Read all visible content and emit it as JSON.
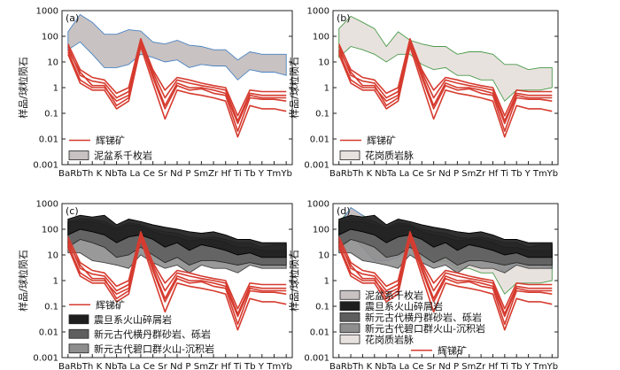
{
  "figure": {
    "y_axis_label": "样品/球粒陨石",
    "x_elements": [
      "Ba",
      "Rb",
      "Th",
      "K",
      "Nb",
      "Ta",
      "La",
      "Ce",
      "Sr",
      "Nd",
      "P",
      "Sm",
      "Zr",
      "Hf",
      "Ti",
      "Tb",
      "Y",
      "Tm",
      "Yb"
    ],
    "x_tick_text": "BaRbTh K NbTa La Ce Sr Nd P SmZr Hf Ti Tb Y TmYb",
    "y_ticks": [
      "0.001",
      "0.01",
      "0.1",
      "1",
      "10",
      "100",
      "1000"
    ]
  },
  "legend_labels": {
    "stibnite": "辉锑矿",
    "nipen_phyllite": "泥盆系千枚岩",
    "granite_vein": "花岗质岩脉",
    "sinian_volcaniclastic": "震旦系火山碎屑岩",
    "henglan_sandstone": "新元古代横丹群砂岩、砾岩",
    "bikou_volcanic": "新元古代碧口群火山-沉积岩"
  },
  "colors": {
    "stibnite": "#d63b2f",
    "phyllite_fill": "#c8c2c2",
    "phyllite_edge": "#4a83c4",
    "granite_fill": "#e8e2de",
    "granite_edge": "#4a9a4a",
    "sinian_fill": "#1e1e1e",
    "henglan_fill": "#5e5e5e",
    "bikou_fill": "#8e8e8e"
  },
  "chart_data": [
    {
      "type": "line",
      "panel": "(a)",
      "yscale": "log",
      "ylim": [
        0.001,
        1000
      ],
      "categories": [
        "Ba",
        "Rb",
        "Th",
        "K",
        "Nb",
        "Ta",
        "La",
        "Ce",
        "Sr",
        "Nd",
        "P",
        "Sm",
        "Zr",
        "Hf",
        "Ti",
        "Tb",
        "Y",
        "Tm",
        "Yb"
      ],
      "ylabel": "样品/球粒陨石",
      "bands": [
        {
          "name": "泥盆系千枚岩",
          "upper": [
            150,
            700,
            350,
            120,
            120,
            180,
            160,
            60,
            50,
            70,
            45,
            40,
            30,
            30,
            12,
            25,
            20,
            20,
            20
          ],
          "lower": [
            30,
            60,
            20,
            6,
            6,
            8,
            20,
            15,
            10,
            12,
            6,
            8,
            7,
            7,
            2,
            5,
            4,
            4,
            3
          ]
        }
      ],
      "series": [
        {
          "name": "辉锑矿",
          "values": [
            25,
            2,
            1,
            1,
            0.3,
            0.5,
            60,
            3,
            0.2,
            1.5,
            1,
            1,
            0.8,
            0.6,
            0.04,
            0.5,
            0.4,
            0.4,
            0.4
          ]
        },
        {
          "name": "辉锑矿",
          "values": [
            40,
            3,
            1.8,
            1.5,
            0.4,
            0.7,
            70,
            4,
            0.4,
            2,
            1.5,
            1.2,
            1,
            0.8,
            0.05,
            0.6,
            0.5,
            0.5,
            0.5
          ]
        },
        {
          "name": "辉锑矿",
          "values": [
            30,
            4,
            1.2,
            1.2,
            0.2,
            0.4,
            55,
            2.5,
            0.15,
            1.2,
            0.8,
            0.9,
            0.6,
            0.5,
            0.02,
            0.4,
            0.35,
            0.35,
            0.3
          ]
        },
        {
          "name": "辉锑矿",
          "values": [
            50,
            5,
            2.5,
            2,
            0.6,
            1,
            80,
            5,
            0.8,
            2.5,
            2,
            1.5,
            1.2,
            1,
            0.08,
            0.8,
            0.7,
            0.7,
            0.7
          ]
        },
        {
          "name": "辉锑矿",
          "values": [
            20,
            1.5,
            0.8,
            0.8,
            0.15,
            0.3,
            40,
            1.5,
            0.06,
            0.8,
            0.6,
            0.5,
            0.4,
            0.3,
            0.012,
            0.2,
            0.15,
            0.15,
            0.12
          ]
        }
      ],
      "legend": [
        "辉锑矿",
        "泥盆系千枚岩"
      ]
    },
    {
      "type": "line",
      "panel": "(b)",
      "yscale": "log",
      "ylim": [
        0.001,
        1000
      ],
      "categories": [
        "Ba",
        "Rb",
        "Th",
        "K",
        "Nb",
        "Ta",
        "La",
        "Ce",
        "Sr",
        "Nd",
        "P",
        "Sm",
        "Zr",
        "Hf",
        "Ti",
        "Tb",
        "Y",
        "Tm",
        "Yb"
      ],
      "ylabel": "样品/球粒陨石",
      "bands": [
        {
          "name": "花岗质岩脉",
          "upper": [
            200,
            600,
            350,
            200,
            40,
            150,
            70,
            50,
            40,
            40,
            20,
            25,
            25,
            20,
            8,
            8,
            5,
            6,
            6
          ],
          "lower": [
            15,
            40,
            30,
            20,
            10,
            20,
            20,
            8,
            5,
            6,
            3,
            3,
            2,
            2,
            0.3,
            0.8,
            0.8,
            0.8,
            1
          ]
        }
      ],
      "series": [
        {
          "name": "辉锑矿",
          "values": [
            25,
            2,
            1,
            1,
            0.3,
            0.5,
            60,
            3,
            0.2,
            1.5,
            1,
            1,
            0.8,
            0.6,
            0.04,
            0.5,
            0.4,
            0.4,
            0.4
          ]
        },
        {
          "name": "辉锑矿",
          "values": [
            40,
            3,
            1.8,
            1.5,
            0.4,
            0.7,
            70,
            4,
            0.4,
            2,
            1.5,
            1.2,
            1,
            0.8,
            0.05,
            0.6,
            0.5,
            0.5,
            0.5
          ]
        },
        {
          "name": "辉锑矿",
          "values": [
            30,
            4,
            1.2,
            1.2,
            0.2,
            0.4,
            55,
            2.5,
            0.15,
            1.2,
            0.8,
            0.9,
            0.6,
            0.5,
            0.02,
            0.4,
            0.35,
            0.35,
            0.3
          ]
        },
        {
          "name": "辉锑矿",
          "values": [
            50,
            5,
            2.5,
            2,
            0.6,
            1,
            80,
            5,
            0.8,
            2.5,
            2,
            1.5,
            1.2,
            1,
            0.08,
            0.8,
            0.7,
            0.7,
            0.7
          ]
        },
        {
          "name": "辉锑矿",
          "values": [
            20,
            1.5,
            0.8,
            0.8,
            0.15,
            0.3,
            40,
            1.5,
            0.06,
            0.8,
            0.6,
            0.5,
            0.4,
            0.3,
            0.012,
            0.2,
            0.15,
            0.15,
            0.12
          ]
        }
      ],
      "legend": [
        "辉锑矿",
        "花岗质岩脉"
      ]
    },
    {
      "type": "line",
      "panel": "(c)",
      "yscale": "log",
      "ylim": [
        0.001,
        1000
      ],
      "categories": [
        "Ba",
        "Rb",
        "Th",
        "K",
        "Nb",
        "Ta",
        "La",
        "Ce",
        "Sr",
        "Nd",
        "P",
        "Sm",
        "Zr",
        "Hf",
        "Ti",
        "Tb",
        "Y",
        "Tm",
        "Yb"
      ],
      "ylabel": "样品/球粒陨石",
      "bands": [
        {
          "name": "新元古代碧口群火山-沉积岩",
          "upper": [
            200,
            250,
            250,
            200,
            120,
            180,
            150,
            100,
            80,
            70,
            50,
            45,
            50,
            40,
            30,
            30,
            20,
            25,
            25
          ],
          "lower": [
            12,
            12,
            6,
            5,
            4,
            3,
            10,
            5,
            3,
            4,
            2,
            4,
            3,
            3,
            2,
            4,
            3,
            3,
            3
          ]
        },
        {
          "name": "新元古代横丹群砂岩、砾岩",
          "upper": [
            180,
            200,
            200,
            150,
            100,
            150,
            130,
            80,
            60,
            50,
            35,
            40,
            40,
            30,
            20,
            20,
            15,
            15,
            15
          ],
          "lower": [
            20,
            40,
            30,
            20,
            8,
            10,
            20,
            10,
            5,
            8,
            4,
            6,
            6,
            5,
            4,
            5,
            4,
            4,
            4
          ]
        },
        {
          "name": "震旦系火山碎屑岩",
          "upper": [
            250,
            350,
            300,
            350,
            150,
            250,
            200,
            150,
            120,
            100,
            80,
            70,
            80,
            60,
            40,
            40,
            30,
            30,
            30
          ],
          "lower": [
            60,
            100,
            80,
            60,
            30,
            50,
            60,
            40,
            20,
            30,
            15,
            25,
            20,
            15,
            10,
            12,
            8,
            8,
            8
          ]
        }
      ],
      "series": [
        {
          "name": "辉锑矿",
          "values": [
            25,
            2,
            1,
            1,
            0.3,
            0.5,
            60,
            3,
            0.2,
            1.5,
            1,
            1,
            0.8,
            0.6,
            0.04,
            0.5,
            0.4,
            0.4,
            0.4
          ]
        },
        {
          "name": "辉锑矿",
          "values": [
            40,
            3,
            1.8,
            1.5,
            0.4,
            0.7,
            70,
            4,
            0.4,
            2,
            1.5,
            1.2,
            1,
            0.8,
            0.05,
            0.6,
            0.5,
            0.5,
            0.5
          ]
        },
        {
          "name": "辉锑矿",
          "values": [
            30,
            4,
            1.2,
            1.2,
            0.2,
            0.4,
            55,
            2.5,
            0.15,
            1.2,
            0.8,
            0.9,
            0.6,
            0.5,
            0.02,
            0.4,
            0.35,
            0.35,
            0.3
          ]
        },
        {
          "name": "辉锑矿",
          "values": [
            50,
            5,
            2.5,
            2,
            0.6,
            1,
            80,
            5,
            0.8,
            2.5,
            2,
            1.5,
            1.2,
            1,
            0.08,
            0.8,
            0.7,
            0.7,
            0.7
          ]
        },
        {
          "name": "辉锑矿",
          "values": [
            20,
            1.5,
            0.8,
            0.8,
            0.15,
            0.3,
            40,
            1.5,
            0.06,
            0.8,
            0.6,
            0.5,
            0.4,
            0.3,
            0.012,
            0.2,
            0.15,
            0.15,
            0.12
          ]
        }
      ],
      "legend": [
        "辉锑矿",
        "震旦系火山碎屑岩",
        "新元古代横丹群砂岩、砾岩",
        "新元古代碧口群火山-沉积岩"
      ]
    },
    {
      "type": "line",
      "panel": "(d)",
      "yscale": "log",
      "ylim": [
        0.001,
        1000
      ],
      "categories": [
        "Ba",
        "Rb",
        "Th",
        "K",
        "Nb",
        "Ta",
        "La",
        "Ce",
        "Sr",
        "Nd",
        "P",
        "Sm",
        "Zr",
        "Hf",
        "Ti",
        "Tb",
        "Y",
        "Tm",
        "Yb"
      ],
      "ylabel": "样品/球粒陨石",
      "bands": [
        {
          "name": "花岗质岩脉",
          "upper": [
            200,
            600,
            350,
            200,
            40,
            150,
            70,
            50,
            40,
            40,
            20,
            25,
            25,
            20,
            8,
            8,
            5,
            6,
            6
          ],
          "lower": [
            15,
            40,
            30,
            20,
            10,
            20,
            20,
            8,
            5,
            6,
            3,
            3,
            2,
            2,
            0.3,
            0.8,
            0.8,
            0.8,
            1
          ]
        },
        {
          "name": "泥盆系千枚岩",
          "upper": [
            150,
            700,
            350,
            120,
            120,
            180,
            160,
            60,
            50,
            70,
            45,
            40,
            30,
            30,
            12,
            25,
            20,
            20,
            20
          ],
          "lower": [
            30,
            60,
            20,
            6,
            6,
            8,
            20,
            15,
            10,
            12,
            6,
            8,
            7,
            7,
            2,
            5,
            4,
            4,
            3
          ]
        },
        {
          "name": "新元古代碧口群火山-沉积岩",
          "upper": [
            200,
            250,
            250,
            200,
            120,
            180,
            150,
            100,
            80,
            70,
            50,
            45,
            50,
            40,
            30,
            30,
            20,
            25,
            25
          ],
          "lower": [
            12,
            12,
            6,
            5,
            4,
            3,
            10,
            5,
            3,
            4,
            2,
            4,
            3,
            3,
            2,
            4,
            3,
            3,
            3
          ]
        },
        {
          "name": "新元古代横丹群砂岩、砾岩",
          "upper": [
            180,
            200,
            200,
            150,
            100,
            150,
            130,
            80,
            60,
            50,
            35,
            40,
            40,
            30,
            20,
            20,
            15,
            15,
            15
          ],
          "lower": [
            20,
            40,
            30,
            20,
            8,
            10,
            20,
            10,
            5,
            8,
            4,
            6,
            6,
            5,
            4,
            5,
            4,
            4,
            4
          ]
        },
        {
          "name": "震旦系火山碎屑岩",
          "upper": [
            250,
            350,
            300,
            350,
            150,
            250,
            200,
            150,
            120,
            100,
            80,
            70,
            80,
            60,
            40,
            40,
            30,
            30,
            30
          ],
          "lower": [
            60,
            100,
            80,
            60,
            30,
            50,
            60,
            40,
            20,
            30,
            15,
            25,
            20,
            15,
            10,
            12,
            8,
            8,
            8
          ]
        }
      ],
      "series": [
        {
          "name": "辉锑矿",
          "values": [
            25,
            2,
            1,
            1,
            0.3,
            0.5,
            60,
            3,
            0.2,
            1.5,
            1,
            1,
            0.8,
            0.6,
            0.04,
            0.5,
            0.4,
            0.4,
            0.4
          ]
        },
        {
          "name": "辉锑矿",
          "values": [
            40,
            3,
            1.8,
            1.5,
            0.4,
            0.7,
            70,
            4,
            0.4,
            2,
            1.5,
            1.2,
            1,
            0.8,
            0.05,
            0.6,
            0.5,
            0.5,
            0.5
          ]
        },
        {
          "name": "辉锑矿",
          "values": [
            30,
            4,
            1.2,
            1.2,
            0.2,
            0.4,
            55,
            2.5,
            0.15,
            1.2,
            0.8,
            0.9,
            0.6,
            0.5,
            0.02,
            0.4,
            0.35,
            0.35,
            0.3
          ]
        },
        {
          "name": "辉锑矿",
          "values": [
            50,
            5,
            2.5,
            2,
            0.6,
            1,
            80,
            5,
            0.8,
            2.5,
            2,
            1.5,
            1.2,
            1,
            0.08,
            0.8,
            0.7,
            0.7,
            0.7
          ]
        },
        {
          "name": "辉锑矿",
          "values": [
            20,
            1.5,
            0.8,
            0.8,
            0.15,
            0.3,
            40,
            1.5,
            0.06,
            0.8,
            0.6,
            0.5,
            0.4,
            0.3,
            0.012,
            0.2,
            0.15,
            0.15,
            0.12
          ]
        }
      ],
      "legend": [
        "泥盆系千枚岩",
        "震旦系火山碎屑岩",
        "新元古代横丹群砂岩、砾岩",
        "新元古代碧口群火山-沉积岩",
        "花岗质岩脉",
        "辉锑矿"
      ]
    }
  ]
}
